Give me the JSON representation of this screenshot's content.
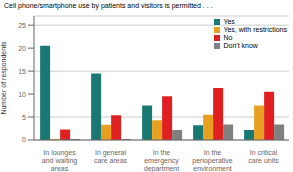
{
  "chart_data": {
    "type": "bar",
    "title": "Cell phone/smartphone use by patients and visitors is permitted . . .",
    "ylabel": "Number of respondents",
    "categories": [
      "In lounges\nand waiting\nareas",
      "In general\ncare areas",
      "In the\nemergency\ndepartment",
      "In the\nperioperative\nenvironment",
      "In critical\ncare units"
    ],
    "series": [
      {
        "name": "Yes",
        "color": "#1a7872",
        "values": [
          20.5,
          14.5,
          7.5,
          3.2,
          2.2
        ]
      },
      {
        "name": "Yes, with restrictions",
        "color": "#e8a020",
        "values": [
          0.2,
          3.3,
          4.3,
          5.5,
          7.5
        ]
      },
      {
        "name": "No",
        "color": "#e02020",
        "values": [
          2.3,
          5.4,
          9.5,
          11.3,
          10.5
        ]
      },
      {
        "name": "Don't know",
        "color": "#808080",
        "values": [
          0.2,
          0.2,
          2.2,
          3.4,
          3.4
        ]
      }
    ],
    "ylim": [
      0,
      27
    ],
    "yticks": [
      0,
      5,
      10,
      15,
      20,
      25
    ],
    "grid": true,
    "legend": "upper right"
  }
}
